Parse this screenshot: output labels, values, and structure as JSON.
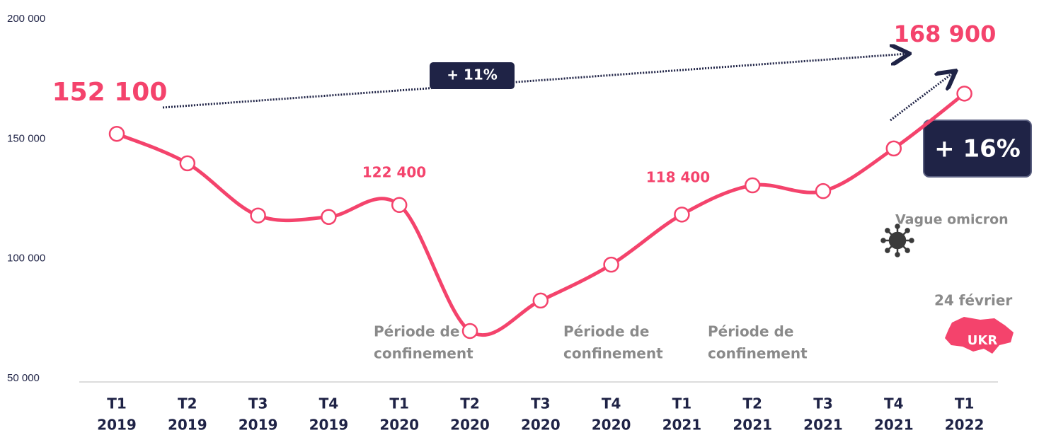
{
  "chart_data": {
    "type": "line",
    "categories": [
      [
        "T1",
        "2019"
      ],
      [
        "T2",
        "2019"
      ],
      [
        "T3",
        "2019"
      ],
      [
        "T4",
        "2019"
      ],
      [
        "T1",
        "2020"
      ],
      [
        "T2",
        "2020"
      ],
      [
        "T3",
        "2020"
      ],
      [
        "T4",
        "2020"
      ],
      [
        "T1",
        "2021"
      ],
      [
        "T2",
        "2021"
      ],
      [
        "T3",
        "2021"
      ],
      [
        "T4",
        "2021"
      ],
      [
        "T1",
        "2022"
      ]
    ],
    "series": [
      {
        "color": "#f4436c",
        "values": [
          152100,
          139800,
          118000,
          117400,
          122400,
          69800,
          82500,
          97500,
          118400,
          130600,
          128200,
          146000,
          168900
        ],
        "value_labels": [
          "152 100",
          null,
          null,
          null,
          "122 400",
          null,
          null,
          null,
          "118 400",
          null,
          null,
          null,
          "168 900"
        ]
      }
    ],
    "ylim": [
      50000,
      200000
    ],
    "yticks": [
      {
        "value": 50000,
        "label": "50 000"
      },
      {
        "value": 100000,
        "label": "100 000"
      },
      {
        "value": 150000,
        "label": "150 000"
      },
      {
        "value": 200000,
        "label": "200 000"
      }
    ],
    "annotations": [
      {
        "text": [
          "+ 11%"
        ]
      },
      {
        "text": [
          "+ 16%"
        ]
      },
      {
        "text": [
          "Période de",
          "confinement"
        ]
      },
      {
        "text": [
          "Période de",
          "confinement"
        ]
      },
      {
        "text": [
          "Période de",
          "confinement"
        ]
      },
      {
        "text": [
          "Vague omicron"
        ]
      },
      {
        "text": [
          "24 février"
        ]
      },
      {
        "text": [
          "UKR"
        ]
      }
    ]
  }
}
